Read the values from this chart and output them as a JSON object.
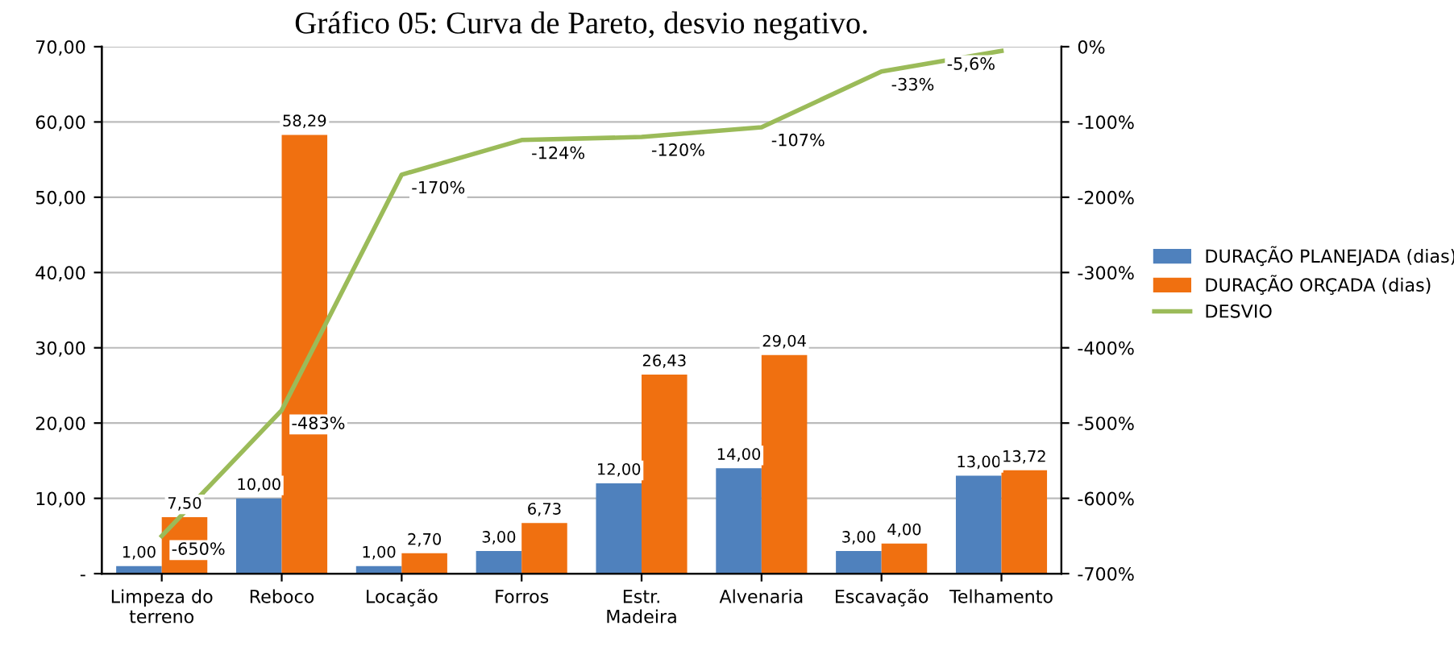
{
  "chart_data": {
    "type": "bar",
    "title": "Gráfico 05: Curva de Pareto, desvio negativo.",
    "categories": [
      "Limpeza do\nterreno",
      "Reboco",
      "Locação",
      "Forros",
      "Estr.\nMadeira",
      "Alvenaria",
      "Escavação",
      "Telhamento"
    ],
    "series": [
      {
        "name": "DURAÇÃO PLANEJADA (dias)",
        "color": "#4f81bd",
        "values": [
          1,
          10,
          1,
          3,
          12,
          14,
          3,
          13
        ],
        "value_labels": [
          "1,00",
          "10,00",
          "1,00",
          "3,00",
          "12,00",
          "14,00",
          "3,00",
          "13,00"
        ]
      },
      {
        "name": "DURAÇÃO ORÇADA (dias)",
        "color": "#f07010",
        "values": [
          7.5,
          58.29,
          2.7,
          6.73,
          26.43,
          29.04,
          4,
          13.72
        ],
        "value_labels": [
          "7,50",
          "58,29",
          "2,70",
          "6,73",
          "26,43",
          "29,04",
          "4,00",
          "13,72"
        ]
      },
      {
        "name": "DESVIO",
        "type": "line",
        "axis": "y2",
        "color": "#9bbb59",
        "values": [
          -650,
          -483,
          -170,
          -124,
          -120,
          -107,
          -33,
          -5.6
        ],
        "value_labels": [
          "-650%",
          "-483%",
          "-170%",
          "-124%",
          "-120%",
          "-107%",
          "-33%",
          "-5,6%"
        ]
      }
    ],
    "ylim": [
      0,
      70
    ],
    "yticks": [
      {
        "value": 0,
        "label": "-"
      },
      {
        "value": 10,
        "label": "10,00"
      },
      {
        "value": 20,
        "label": "20,00"
      },
      {
        "value": 30,
        "label": "30,00"
      },
      {
        "value": 40,
        "label": "40,00"
      },
      {
        "value": 50,
        "label": "50,00"
      },
      {
        "value": 60,
        "label": "60,00"
      },
      {
        "value": 70,
        "label": "70,00"
      }
    ],
    "y2lim": [
      -700,
      0
    ],
    "y2ticks": [
      {
        "value": -700,
        "label": "-700%"
      },
      {
        "value": -600,
        "label": "-600%"
      },
      {
        "value": -500,
        "label": "-500%"
      },
      {
        "value": -400,
        "label": "-400%"
      },
      {
        "value": -300,
        "label": "-300%"
      },
      {
        "value": -200,
        "label": "-200%"
      },
      {
        "value": -100,
        "label": "-100%"
      },
      {
        "value": 0,
        "label": "0%"
      }
    ],
    "grid": "y",
    "legend": "right",
    "marker": "none",
    "line_style": "solid"
  }
}
